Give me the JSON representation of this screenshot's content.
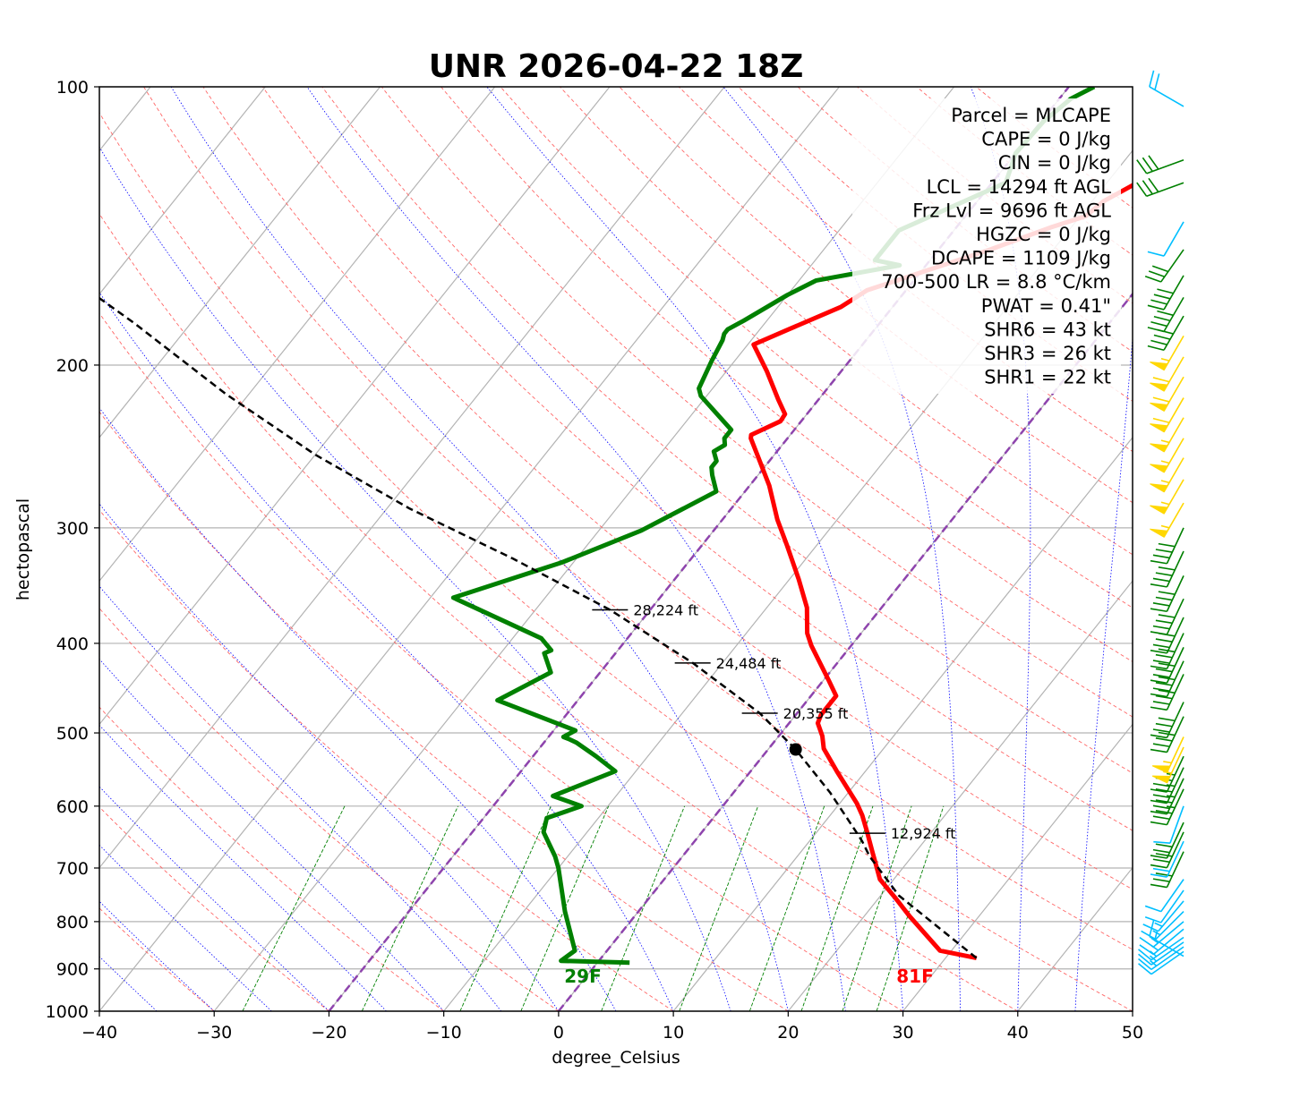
{
  "title": "UNR 2026-04-22 18Z",
  "colors": {
    "temperature": "#ff0000",
    "dewpoint": "#008000",
    "parcel": "#000000",
    "freezing_isotherms": "#8e44ad",
    "dry_adiabats": "#ff6666",
    "moist_adiabats": "#0000ff",
    "mixing_ratio": "#008000",
    "barb_low": "#00bfff",
    "barb_mid": "#008000",
    "barb_high": "#ffd700"
  },
  "chart_data": {
    "type": "line",
    "title": "UNR 2026-04-22 18Z",
    "xlabel": "degree_Celsius",
    "ylabel": "hectopascal",
    "xlim": [
      -40,
      50
    ],
    "ylim": [
      1000,
      100
    ],
    "y_scale": "log",
    "skew": "skew-T log-p",
    "grid": true,
    "x_ticks": [
      "−40",
      "−30",
      "−20",
      "−10",
      "0",
      "10",
      "20",
      "30",
      "40",
      "50"
    ],
    "y_ticks": [
      "100",
      "200",
      "300",
      "400",
      "500",
      "600",
      "700",
      "800",
      "900",
      "1000"
    ],
    "series": [
      {
        "key": "temperature",
        "points": [
          [
            32.7,
            876
          ],
          [
            29,
            860
          ],
          [
            24,
            790
          ],
          [
            21.5,
            755
          ],
          [
            18.8,
            720
          ],
          [
            17.2,
            690
          ],
          [
            16.2,
            672
          ],
          [
            14.5,
            642
          ],
          [
            12.8,
            614
          ],
          [
            11.5,
            596
          ],
          [
            7.5,
            550
          ],
          [
            4.8,
            520
          ],
          [
            3.8,
            504
          ],
          [
            2.5,
            488
          ],
          [
            2.2,
            478
          ],
          [
            2.2,
            456
          ],
          [
            0.5,
            439
          ],
          [
            -3.5,
            402
          ],
          [
            -4.7,
            390
          ],
          [
            -6.5,
            366
          ],
          [
            -9.2,
            341
          ],
          [
            -12.5,
            314
          ],
          [
            -15.2,
            294
          ],
          [
            -18.3,
            270
          ],
          [
            -21.5,
            250
          ],
          [
            -23.2,
            240
          ],
          [
            -23.4,
            238
          ],
          [
            -21.8,
            230
          ],
          [
            -21.9,
            226
          ],
          [
            -23.5,
            218
          ],
          [
            -26.5,
            203
          ],
          [
            -29.5,
            190
          ],
          [
            -27.5,
            183
          ],
          [
            -24.5,
            173
          ],
          [
            -23.4,
            166
          ],
          [
            -15.5,
            150
          ],
          [
            -11.8,
            142
          ],
          [
            -9.5,
            138
          ],
          [
            -9,
            133
          ],
          [
            -6.5,
            124
          ],
          [
            -2,
            112
          ],
          [
            -0.2,
            108
          ],
          [
            0.3,
            104
          ],
          [
            1,
            100
          ]
        ]
      },
      {
        "key": "dewpoint",
        "points": [
          [
            2.8,
            886
          ],
          [
            -3.3,
            882
          ],
          [
            -2.8,
            860
          ],
          [
            -6.4,
            780
          ],
          [
            -10,
            700
          ],
          [
            -11.1,
            680
          ],
          [
            -13.8,
            640
          ],
          [
            -14.5,
            618
          ],
          [
            -12.3,
            600
          ],
          [
            -15.5,
            585
          ],
          [
            -11.8,
            550
          ],
          [
            -14.5,
            530
          ],
          [
            -17.2,
            512
          ],
          [
            -18,
            508
          ],
          [
            -18.7,
            505
          ],
          [
            -18.1,
            497
          ],
          [
            -27,
            461
          ],
          [
            -24.3,
            430
          ],
          [
            -26.2,
            410
          ],
          [
            -25.8,
            407
          ],
          [
            -27.5,
            395
          ],
          [
            -38,
            357
          ],
          [
            -31,
            327
          ],
          [
            -26.3,
            302
          ],
          [
            -22.5,
            274
          ],
          [
            -24,
            263
          ],
          [
            -24.6,
            258
          ],
          [
            -24.6,
            254
          ],
          [
            -25.5,
            248
          ],
          [
            -25,
            244
          ],
          [
            -25.5,
            240
          ],
          [
            -25.5,
            235
          ],
          [
            -30.5,
            216
          ],
          [
            -31.2,
            212
          ],
          [
            -32,
            198
          ],
          [
            -32.5,
            188
          ],
          [
            -32.8,
            185
          ],
          [
            -32.8,
            183
          ],
          [
            -32,
            179
          ],
          [
            -30,
            168
          ],
          [
            -28.5,
            162
          ],
          [
            -22.3,
            156
          ],
          [
            -24.8,
            154
          ],
          [
            -24.8,
            143
          ],
          [
            -18.8,
            127
          ],
          [
            -20,
            118
          ],
          [
            -19.8,
            109
          ],
          [
            -19,
            103
          ],
          [
            -17.8,
            100
          ]
        ]
      },
      {
        "key": "parcel",
        "points": [
          [
            32.7,
            876
          ],
          [
            21.6,
            750
          ],
          [
            16.3,
            680
          ],
          [
            14.6,
            655
          ],
          [
            13.6,
            642
          ],
          [
            8.4,
            580
          ],
          [
            2.4,
            521
          ],
          [
            -3.25,
            476
          ],
          [
            -12.6,
            420
          ],
          [
            -23.5,
            368
          ],
          [
            -35.5,
            324
          ],
          [
            -48,
            286
          ],
          [
            -60,
            250
          ],
          [
            -72,
            215
          ],
          [
            -85,
            180
          ],
          [
            -98,
            152
          ],
          [
            -110,
            130
          ],
          [
            -122,
            110
          ],
          [
            -128,
            100
          ]
        ]
      }
    ],
    "lcl": {
      "t": 2.4,
      "p": 521
    },
    "height_markers": [
      {
        "label": "12,924 ft",
        "t": 14.5,
        "p": 642
      },
      {
        "label": "20,355 ft",
        "t": -3.25,
        "p": 476
      },
      {
        "label": "24,484 ft",
        "t": -12.6,
        "p": 420
      },
      {
        "label": "28,224 ft",
        "t": -23.5,
        "p": 368
      }
    ],
    "surface_labels": {
      "dewpoint": "29F",
      "temperature": "81F"
    },
    "stats": [
      "Parcel = MLCAPE",
      "CAPE = 0 J/kg",
      "CIN = 0 J/kg",
      "LCL = 14294 ft AGL",
      "Frz Lvl = 9696 ft AGL",
      "HGZC = 0 J/kg",
      "DCAPE = 1109 J/kg",
      "700-500 LR = 8.8 °C/km",
      "PWAT = 0.41\"",
      "SHR6 = 43 kt",
      "SHR3 = 26 kt",
      "SHR1 = 22 kt"
    ],
    "wind_barbs": [
      {
        "p": 872,
        "dir": 300,
        "kt": 15,
        "c": "barb_low"
      },
      {
        "p": 862,
        "dir": 235,
        "kt": 10,
        "c": "barb_low"
      },
      {
        "p": 852,
        "dir": 235,
        "kt": 15,
        "c": "barb_low"
      },
      {
        "p": 842,
        "dir": 235,
        "kt": 15,
        "c": "barb_low"
      },
      {
        "p": 832,
        "dir": 235,
        "kt": 15,
        "c": "barb_low"
      },
      {
        "p": 815,
        "dir": 230,
        "kt": 15,
        "c": "barb_low"
      },
      {
        "p": 800,
        "dir": 230,
        "kt": 15,
        "c": "barb_low"
      },
      {
        "p": 780,
        "dir": 225,
        "kt": 15,
        "c": "barb_low"
      },
      {
        "p": 760,
        "dir": 220,
        "kt": 15,
        "c": "barb_low"
      },
      {
        "p": 740,
        "dir": 215,
        "kt": 10,
        "c": "barb_low"
      },
      {
        "p": 720,
        "dir": 215,
        "kt": 10,
        "c": "barb_low"
      },
      {
        "p": 672,
        "dir": 205,
        "kt": 30,
        "c": "barb_mid"
      },
      {
        "p": 655,
        "dir": 205,
        "kt": 20,
        "c": "barb_low"
      },
      {
        "p": 640,
        "dir": 205,
        "kt": 30,
        "c": "barb_mid"
      },
      {
        "p": 625,
        "dir": 205,
        "kt": 30,
        "c": "barb_mid"
      },
      {
        "p": 600,
        "dir": 200,
        "kt": 10,
        "c": "barb_low"
      },
      {
        "p": 575,
        "dir": 205,
        "kt": 35,
        "c": "barb_mid"
      },
      {
        "p": 560,
        "dir": 205,
        "kt": 35,
        "c": "barb_mid"
      },
      {
        "p": 545,
        "dir": 205,
        "kt": 35,
        "c": "barb_mid"
      },
      {
        "p": 530,
        "dir": 205,
        "kt": 35,
        "c": "barb_mid"
      },
      {
        "p": 518,
        "dir": 205,
        "kt": 55,
        "c": "barb_high"
      },
      {
        "p": 505,
        "dir": 205,
        "kt": 55,
        "c": "barb_high"
      },
      {
        "p": 480,
        "dir": 205,
        "kt": 40,
        "c": "barb_mid"
      },
      {
        "p": 463,
        "dir": 205,
        "kt": 40,
        "c": "barb_mid"
      },
      {
        "p": 432,
        "dir": 205,
        "kt": 40,
        "c": "barb_mid"
      },
      {
        "p": 418,
        "dir": 205,
        "kt": 40,
        "c": "barb_mid"
      },
      {
        "p": 404,
        "dir": 205,
        "kt": 40,
        "c": "barb_mid"
      },
      {
        "p": 390,
        "dir": 205,
        "kt": 40,
        "c": "barb_mid"
      },
      {
        "p": 375,
        "dir": 205,
        "kt": 40,
        "c": "barb_mid"
      },
      {
        "p": 358,
        "dir": 205,
        "kt": 40,
        "c": "barb_mid"
      },
      {
        "p": 338,
        "dir": 205,
        "kt": 40,
        "c": "barb_mid"
      },
      {
        "p": 318,
        "dir": 205,
        "kt": 40,
        "c": "barb_mid"
      },
      {
        "p": 300,
        "dir": 205,
        "kt": 40,
        "c": "barb_mid"
      },
      {
        "p": 282,
        "dir": 210,
        "kt": 55,
        "c": "barb_high"
      },
      {
        "p": 266,
        "dir": 210,
        "kt": 55,
        "c": "barb_high"
      },
      {
        "p": 252,
        "dir": 210,
        "kt": 55,
        "c": "barb_high"
      },
      {
        "p": 240,
        "dir": 210,
        "kt": 55,
        "c": "barb_high"
      },
      {
        "p": 228,
        "dir": 210,
        "kt": 55,
        "c": "barb_high"
      },
      {
        "p": 217,
        "dir": 210,
        "kt": 60,
        "c": "barb_high"
      },
      {
        "p": 206,
        "dir": 210,
        "kt": 60,
        "c": "barb_high"
      },
      {
        "p": 196,
        "dir": 210,
        "kt": 60,
        "c": "barb_high"
      },
      {
        "p": 186,
        "dir": 210,
        "kt": 55,
        "c": "barb_high"
      },
      {
        "p": 177,
        "dir": 210,
        "kt": 40,
        "c": "barb_mid"
      },
      {
        "p": 169,
        "dir": 210,
        "kt": 40,
        "c": "barb_mid"
      },
      {
        "p": 160,
        "dir": 210,
        "kt": 40,
        "c": "barb_mid"
      },
      {
        "p": 150,
        "dir": 215,
        "kt": 30,
        "c": "barb_mid"
      },
      {
        "p": 140,
        "dir": 210,
        "kt": 10,
        "c": "barb_low"
      },
      {
        "p": 127,
        "dir": 250,
        "kt": 30,
        "c": "barb_mid"
      },
      {
        "p": 120,
        "dir": 250,
        "kt": 30,
        "c": "barb_mid"
      },
      {
        "p": 105,
        "dir": 300,
        "kt": 20,
        "c": "barb_low"
      }
    ]
  }
}
